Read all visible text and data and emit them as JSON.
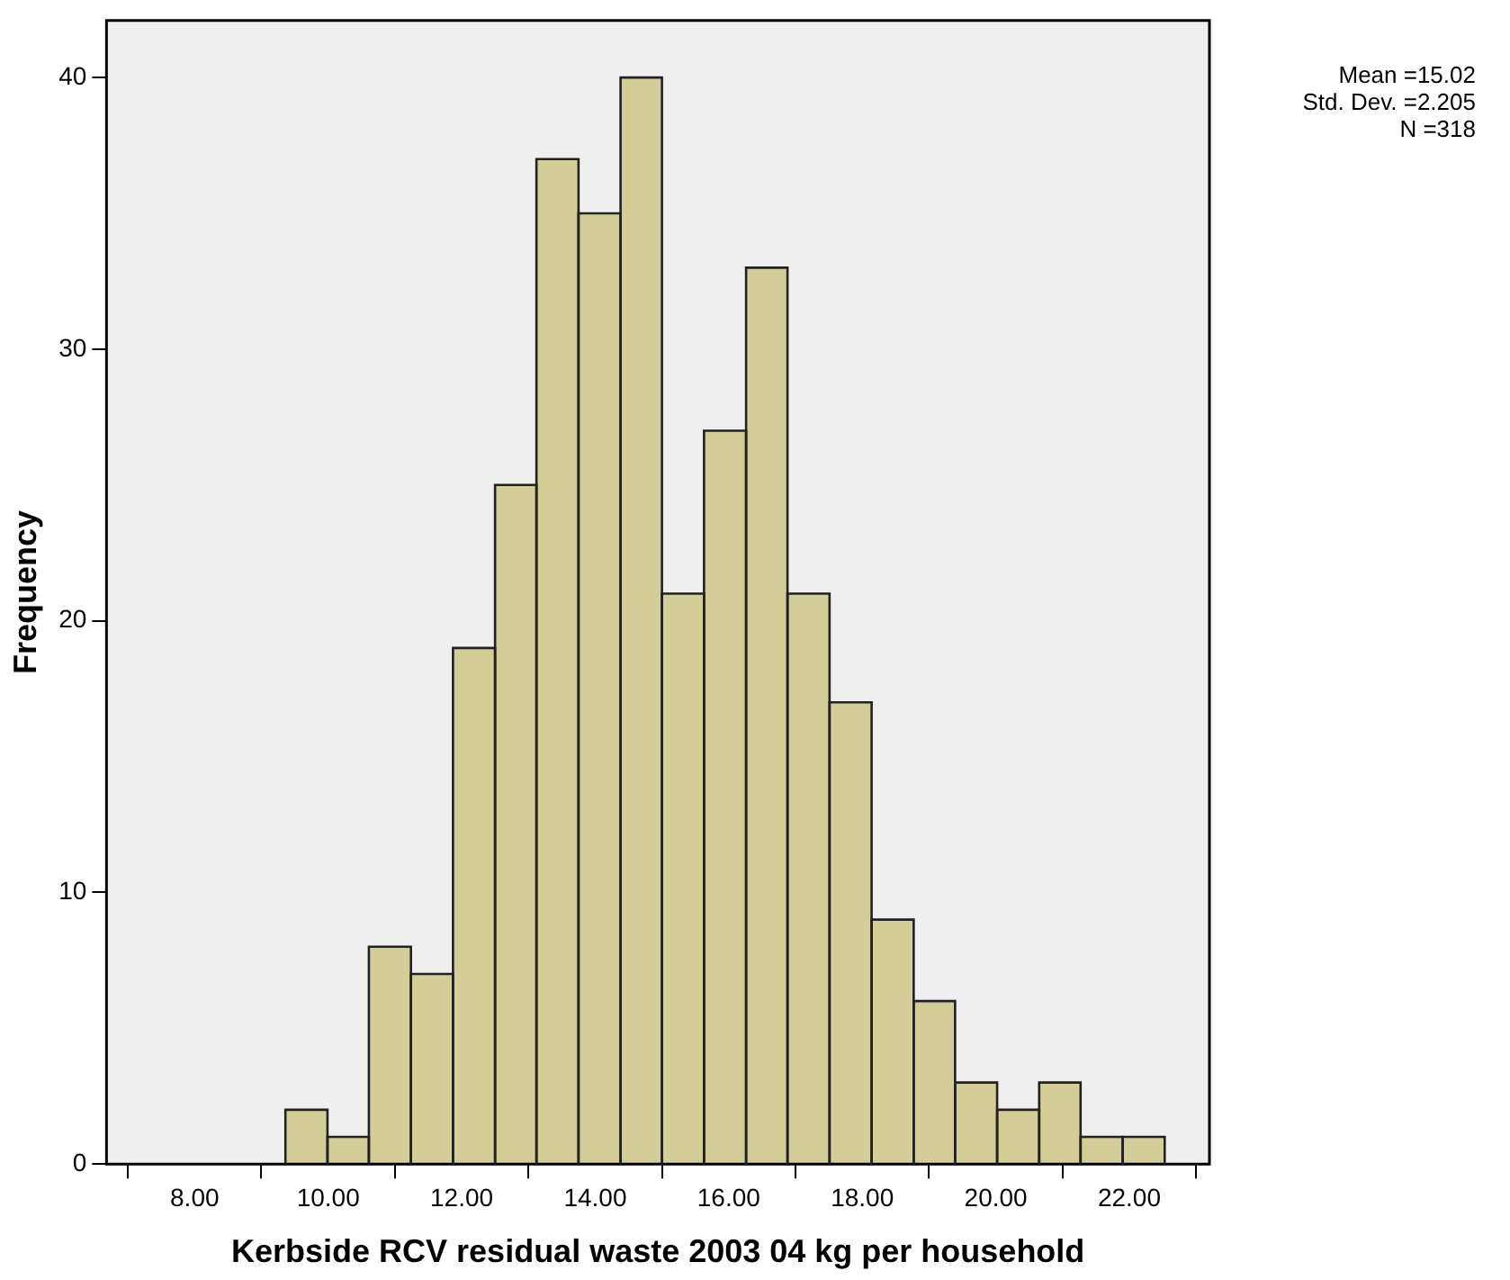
{
  "chart_data": {
    "type": "histogram",
    "xlabel": "Kerbside RCV residual waste 2003 04 kg per household",
    "ylabel": "Frequency",
    "bins": [
      9.36,
      9.99,
      10.61,
      11.24,
      11.87,
      12.5,
      13.12,
      13.75,
      14.38,
      15.0,
      15.63,
      16.26,
      16.88,
      17.51,
      18.14,
      18.77,
      19.39,
      20.02,
      20.65,
      21.27,
      21.9,
      22.53
    ],
    "values": [
      2,
      1,
      8,
      7,
      19,
      25,
      37,
      35,
      40,
      21,
      27,
      33,
      21,
      17,
      9,
      6,
      3,
      2,
      3,
      1,
      1
    ],
    "color": "#d3ce97",
    "xlim": [
      6.68,
      23.2
    ],
    "xticks": [
      {
        "value": 8,
        "label": "8.00"
      },
      {
        "value": 10,
        "label": "10.00"
      },
      {
        "value": 12,
        "label": "12.00"
      },
      {
        "value": 14,
        "label": "14.00"
      },
      {
        "value": 16,
        "label": "16.00"
      },
      {
        "value": 18,
        "label": "18.00"
      },
      {
        "value": 20,
        "label": "20.00"
      },
      {
        "value": 22,
        "label": "22.00"
      }
    ],
    "ylim": [
      0,
      42.1
    ],
    "yticks": [
      0,
      10,
      20,
      30,
      40
    ],
    "grid": false,
    "legend": false,
    "annotations": [
      "Mean =15.02",
      "Std. Dev. =2.205",
      "N =318"
    ]
  }
}
